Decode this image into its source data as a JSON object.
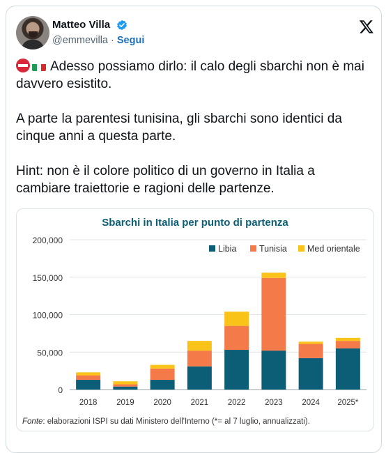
{
  "author": {
    "name": "Matteo Villa",
    "handle": "@emmevilla",
    "separator": "·",
    "follow_label": "Segui"
  },
  "icons": {
    "verified": "verified-badge-icon",
    "x_logo": "x-logo-icon",
    "no_entry": "no-entry-emoji",
    "flag": "italy-flag-emoji"
  },
  "tweet": {
    "paragraph1": "Adesso possiamo dirlo: il calo degli sbarchi non è mai davvero esistito.",
    "paragraph2": "A parte la parentesi tunisina, gli sbarchi sono identici da cinque anni a questa parte.",
    "paragraph3": "Hint: non è il colore politico di un governo in Italia a cambiare traiettorie e ragioni delle partenze."
  },
  "colors": {
    "libia": "#0b5e75",
    "tunisia": "#f47a4a",
    "med_orientale": "#f9c319",
    "title": "#0b5e75",
    "link": "#1d70b8"
  },
  "chart_data": {
    "type": "bar",
    "stacked": true,
    "title": "Sbarchi in Italia per punto di partenza",
    "categories": [
      "2018",
      "2019",
      "2020",
      "2021",
      "2022",
      "2023",
      "2024",
      "2025*"
    ],
    "series": [
      {
        "name": "Libia",
        "values": [
          13000,
          4000,
          13000,
          31000,
          53000,
          52000,
          42000,
          55000
        ]
      },
      {
        "name": "Tunisia",
        "values": [
          6000,
          3000,
          15000,
          21000,
          32000,
          97000,
          19000,
          10000
        ]
      },
      {
        "name": "Med orientale",
        "values": [
          4000,
          4000,
          5000,
          13000,
          19000,
          7000,
          3000,
          4000
        ]
      }
    ],
    "ylim": [
      0,
      200000
    ],
    "yticks": [
      "0",
      "50,000",
      "100,000",
      "150,000",
      "200,000"
    ],
    "grid": true,
    "legend": "top-right",
    "source_label": "Fonte",
    "source_text": ": elaborazioni ISPI su dati Ministero dell'Interno (*= al 7 luglio, annualizzati)."
  }
}
